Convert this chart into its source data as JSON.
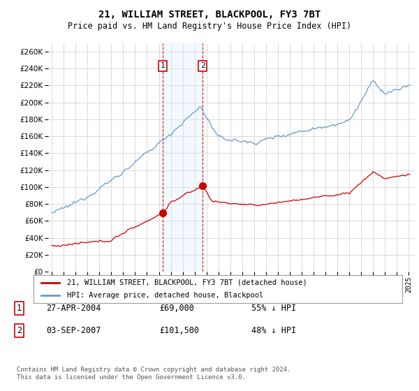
{
  "title": "21, WILLIAM STREET, BLACKPOOL, FY3 7BT",
  "subtitle": "Price paid vs. HM Land Registry's House Price Index (HPI)",
  "ylim": [
    0,
    270000
  ],
  "yticks": [
    0,
    20000,
    40000,
    60000,
    80000,
    100000,
    120000,
    140000,
    160000,
    180000,
    200000,
    220000,
    240000,
    260000
  ],
  "transaction1_date": "27-APR-2004",
  "transaction1_price": 69000,
  "transaction1_label": "£69,000",
  "transaction1_hpi": "55% ↓ HPI",
  "transaction1_x": 2004.32,
  "transaction2_date": "03-SEP-2007",
  "transaction2_price": 101500,
  "transaction2_label": "£101,500",
  "transaction2_hpi": "48% ↓ HPI",
  "transaction2_x": 2007.68,
  "legend_line1": "21, WILLIAM STREET, BLACKPOOL, FY3 7BT (detached house)",
  "legend_line2": "HPI: Average price, detached house, Blackpool",
  "footer": "Contains HM Land Registry data © Crown copyright and database right 2024.\nThis data is licensed under the Open Government Licence v3.0.",
  "line_color_red": "#cc0000",
  "line_color_blue": "#6699cc",
  "shade_color": "#ddeeff",
  "background_color": "#ffffff",
  "grid_color": "#cccccc",
  "box_color": "#cc0000",
  "xlim_left": 1994.7,
  "xlim_right": 2025.5
}
